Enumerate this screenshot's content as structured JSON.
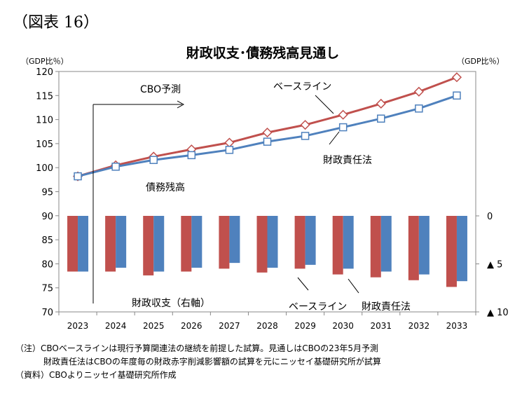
{
  "figure_label": "（図表 16）",
  "chart_data": {
    "type": "bar+line",
    "title": "財政収支･債務残高見通し",
    "left_axis_unit": "（GDP比％）",
    "right_axis_unit": "（GDP比％）",
    "categories": [
      "2023",
      "2024",
      "2025",
      "2026",
      "2027",
      "2028",
      "2029",
      "2030",
      "2031",
      "2032",
      "2033"
    ],
    "left_axis": {
      "min": 70,
      "max": 120,
      "ticks": [
        120,
        115,
        110,
        105,
        100,
        95,
        90,
        85,
        80,
        75,
        70
      ]
    },
    "right_axis": {
      "ticks": [
        {
          "label": "0",
          "value": 0
        },
        {
          "label": "▲ 5",
          "value": -5
        },
        {
          "label": "▲ 10",
          "value": -10
        }
      ]
    },
    "lines": [
      {
        "name": "ベースライン",
        "color": "#c0504d",
        "marker": "diamond",
        "values": [
          98.2,
          100.5,
          102.3,
          103.8,
          105.2,
          107.3,
          108.9,
          111.0,
          113.3,
          115.8,
          118.8
        ]
      },
      {
        "name": "財政責任法",
        "color": "#4f81bd",
        "marker": "square",
        "values": [
          98.2,
          100.2,
          101.6,
          102.6,
          103.7,
          105.4,
          106.6,
          108.4,
          110.2,
          112.3,
          115.0
        ]
      }
    ],
    "bars": [
      {
        "name": "ベースライン",
        "color": "#c0504d",
        "values": [
          -5.8,
          -5.8,
          -6.2,
          -5.8,
          -5.5,
          -5.9,
          -5.5,
          -6.1,
          -6.4,
          -6.7,
          -7.4
        ]
      },
      {
        "name": "財政責任法",
        "color": "#4f81bd",
        "values": [
          -5.8,
          -5.4,
          -5.8,
          -5.4,
          -4.9,
          -5.4,
          -5.1,
          -5.5,
          -5.8,
          -6.1,
          -6.8
        ]
      }
    ],
    "annotations": {
      "cbo_forecast": "CBO予測",
      "debt_label": "債務残高",
      "balance_label": "財政収支（右軸）",
      "line_baseline": "ベースライン",
      "line_fra": "財政責任法",
      "bar_baseline": "ベースライン",
      "bar_fra": "財政責任法"
    }
  },
  "notes": {
    "line1": "（注）CBOベースラインは現行予算関連法の継続を前提した試算。見通しはCBOの23年5月予測",
    "line2": "財政責任法はCBOの年度毎の財政赤字削減影響額の試算を元にニッセイ基礎研究所が試算",
    "line3": "（資料）CBOよりニッセイ基礎研究所作成"
  }
}
